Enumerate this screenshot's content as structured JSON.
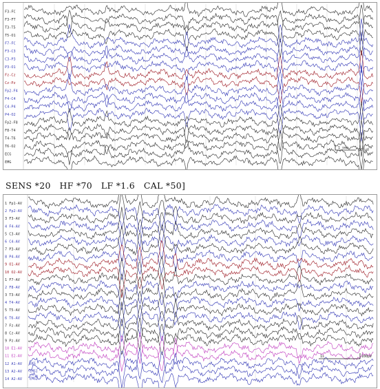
{
  "top_panel": {
    "channels": [
      {
        "label": "F3-FC",
        "color": "#333333"
      },
      {
        "label": "F3-FT",
        "color": "#333333"
      },
      {
        "label": "T3-T5",
        "color": "#333333"
      },
      {
        "label": "T5-O1",
        "color": "#333333"
      },
      {
        "label": "F7-FC",
        "color": "#3a3fb8"
      },
      {
        "label": "F3-C3",
        "color": "#3a3fb8"
      },
      {
        "label": "C3-P3",
        "color": "#3a3fb8"
      },
      {
        "label": "P3-O1",
        "color": "#3a3fb8"
      },
      {
        "label": "Fz-Cz",
        "color": "#a0202a"
      },
      {
        "label": "Cz-Pz",
        "color": "#a0202a"
      },
      {
        "label": "Fp2-F4",
        "color": "#3a3fb8"
      },
      {
        "label": "F4-C4",
        "color": "#3a3fb8"
      },
      {
        "label": "C4-P4",
        "color": "#3a3fb8"
      },
      {
        "label": "P4-O2",
        "color": "#3a3fb8"
      },
      {
        "label": "Fp2-F8",
        "color": "#333333"
      },
      {
        "label": "F8-T4",
        "color": "#333333"
      },
      {
        "label": "T4-T6",
        "color": "#333333"
      },
      {
        "label": "T6-O2",
        "color": "#333333"
      },
      {
        "label": "ECG",
        "color": "#333333"
      },
      {
        "label": "EMG",
        "color": "#333333"
      }
    ],
    "scale_bar": "1 sec",
    "scale_amp": "50 µV"
  },
  "settings": "SENS *20   HF *70   LF *1.6   CAL *50]",
  "bottom_panel": {
    "channels": [
      {
        "label": "1 Fp1-AV",
        "color": "#333333"
      },
      {
        "label": "2 Fp2-AV",
        "color": "#3a3fb8"
      },
      {
        "label": "3 F3-AV",
        "color": "#333333"
      },
      {
        "label": "4 F4-AV",
        "color": "#3a3fb8"
      },
      {
        "label": "5 C3-AV",
        "color": "#333333"
      },
      {
        "label": "6 C4-AV",
        "color": "#3a3fb8"
      },
      {
        "label": "7 P3-AV",
        "color": "#333333"
      },
      {
        "label": "8 P4-AV",
        "color": "#3a3fb8"
      },
      {
        "label": "9 O1-AV",
        "color": "#a0202a"
      },
      {
        "label": "10 O2-AV",
        "color": "#a0202a"
      },
      {
        "label": "1 F7-AV",
        "color": "#333333"
      },
      {
        "label": "2 F8-AV",
        "color": "#3a3fb8"
      },
      {
        "label": "3 T3-AV",
        "color": "#333333"
      },
      {
        "label": "4 T4-AV",
        "color": "#3a3fb8"
      },
      {
        "label": "5 T5-AV",
        "color": "#333333"
      },
      {
        "label": "6 T6-AV",
        "color": "#3a3fb8"
      },
      {
        "label": "7 Fz-AV",
        "color": "#333333"
      },
      {
        "label": "8 Cz-AV",
        "color": "#333333"
      },
      {
        "label": "9 Pz-AV",
        "color": "#333333"
      },
      {
        "label": "10 E1-AV",
        "color": "#c040c0"
      },
      {
        "label": "11 E2-AV",
        "color": "#c040c0"
      },
      {
        "label": "12 A1-AV",
        "color": "#3a3fb8"
      },
      {
        "label": "13 A2-AV",
        "color": "#3a3fb8"
      },
      {
        "label": "14 A2-AV",
        "color": "#3a3fb8"
      }
    ],
    "extra_labels": [
      "EKG",
      "EMG1",
      "EMG2"
    ],
    "scale_bar": "1s",
    "scale_amp": "100µV"
  }
}
